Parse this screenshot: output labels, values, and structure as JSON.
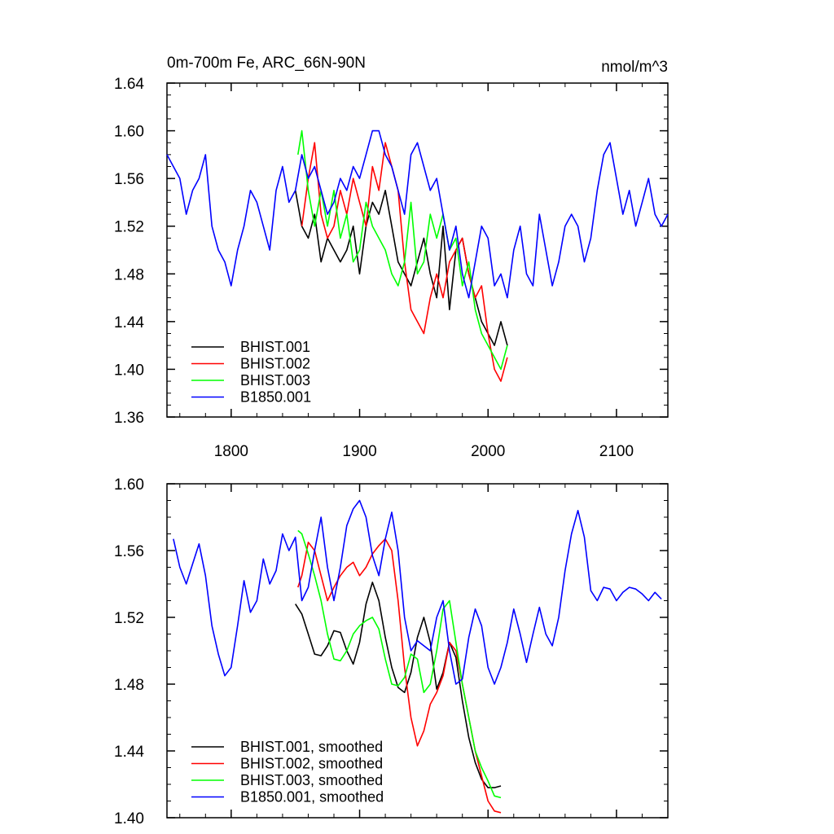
{
  "chart_data": [
    {
      "type": "line",
      "title": "0m-700m Fe, ARC_66N-90N",
      "units": "nmol/m^3",
      "xlim": [
        1750,
        2140
      ],
      "ylim": [
        1.36,
        1.64
      ],
      "xticks": [
        1800,
        1900,
        2000,
        2100
      ],
      "xtick_labels": [
        "1800",
        "1900",
        "2000",
        "2100"
      ],
      "yticks": [
        1.36,
        1.4,
        1.44,
        1.48,
        1.52,
        1.56,
        1.6,
        1.64
      ],
      "ytick_labels": [
        "1.36",
        "1.40",
        "1.44",
        "1.48",
        "1.52",
        "1.56",
        "1.60",
        "1.64"
      ],
      "legend_position": "bottom-left",
      "series": [
        {
          "name": "BHIST.001",
          "color": "#000000",
          "x": [
            1850,
            1855,
            1860,
            1865,
            1870,
            1875,
            1880,
            1885,
            1890,
            1895,
            1900,
            1905,
            1910,
            1915,
            1920,
            1925,
            1930,
            1935,
            1940,
            1945,
            1950,
            1955,
            1960,
            1965,
            1970,
            1975,
            1980,
            1985,
            1990,
            1995,
            2000,
            2005,
            2010,
            2015
          ],
          "y": [
            1.55,
            1.52,
            1.51,
            1.53,
            1.49,
            1.51,
            1.5,
            1.49,
            1.5,
            1.52,
            1.48,
            1.52,
            1.54,
            1.53,
            1.55,
            1.52,
            1.49,
            1.48,
            1.47,
            1.49,
            1.51,
            1.48,
            1.46,
            1.52,
            1.45,
            1.5,
            1.51,
            1.48,
            1.46,
            1.44,
            1.43,
            1.42,
            1.44,
            1.42
          ]
        },
        {
          "name": "BHIST.002",
          "color": "#ff0000",
          "x": [
            1855,
            1860,
            1865,
            1870,
            1875,
            1880,
            1885,
            1890,
            1895,
            1900,
            1905,
            1910,
            1915,
            1920,
            1925,
            1930,
            1935,
            1940,
            1945,
            1950,
            1955,
            1960,
            1965,
            1970,
            1975,
            1980,
            1985,
            1990,
            1995,
            2000,
            2005,
            2010,
            2015
          ],
          "y": [
            1.52,
            1.56,
            1.59,
            1.53,
            1.51,
            1.52,
            1.55,
            1.53,
            1.56,
            1.54,
            1.52,
            1.57,
            1.55,
            1.59,
            1.57,
            1.55,
            1.49,
            1.45,
            1.44,
            1.43,
            1.46,
            1.48,
            1.46,
            1.49,
            1.5,
            1.51,
            1.48,
            1.46,
            1.47,
            1.43,
            1.4,
            1.39,
            1.41
          ]
        },
        {
          "name": "BHIST.003",
          "color": "#00ff00",
          "x": [
            1852,
            1855,
            1860,
            1865,
            1870,
            1875,
            1880,
            1885,
            1890,
            1895,
            1900,
            1905,
            1910,
            1915,
            1920,
            1925,
            1930,
            1935,
            1940,
            1945,
            1950,
            1955,
            1960,
            1965,
            1970,
            1975,
            1980,
            1985,
            1990,
            1995,
            2000,
            2005,
            2010,
            2015
          ],
          "y": [
            1.58,
            1.6,
            1.55,
            1.52,
            1.55,
            1.52,
            1.55,
            1.51,
            1.53,
            1.49,
            1.5,
            1.54,
            1.52,
            1.51,
            1.5,
            1.48,
            1.47,
            1.49,
            1.54,
            1.48,
            1.49,
            1.53,
            1.51,
            1.53,
            1.5,
            1.51,
            1.47,
            1.49,
            1.45,
            1.43,
            1.42,
            1.41,
            1.4,
            1.42
          ]
        },
        {
          "name": "B1850.001",
          "color": "#0000ff",
          "x": [
            1750,
            1755,
            1760,
            1765,
            1770,
            1775,
            1780,
            1785,
            1790,
            1795,
            1800,
            1805,
            1810,
            1815,
            1820,
            1825,
            1830,
            1835,
            1840,
            1845,
            1850,
            1855,
            1860,
            1865,
            1870,
            1875,
            1880,
            1885,
            1890,
            1895,
            1900,
            1905,
            1910,
            1915,
            1920,
            1925,
            1930,
            1935,
            1940,
            1945,
            1950,
            1955,
            1960,
            1965,
            1970,
            1975,
            1980,
            1985,
            1990,
            1995,
            2000,
            2005,
            2010,
            2015,
            2020,
            2025,
            2030,
            2035,
            2040,
            2045,
            2050,
            2055,
            2060,
            2065,
            2070,
            2075,
            2080,
            2085,
            2090,
            2095,
            2100,
            2105,
            2110,
            2115,
            2120,
            2125,
            2130,
            2135,
            2140
          ],
          "y": [
            1.58,
            1.57,
            1.56,
            1.53,
            1.55,
            1.56,
            1.58,
            1.52,
            1.5,
            1.49,
            1.47,
            1.5,
            1.52,
            1.55,
            1.54,
            1.52,
            1.5,
            1.55,
            1.57,
            1.54,
            1.55,
            1.58,
            1.56,
            1.57,
            1.55,
            1.53,
            1.54,
            1.56,
            1.55,
            1.57,
            1.56,
            1.58,
            1.6,
            1.6,
            1.58,
            1.57,
            1.55,
            1.53,
            1.58,
            1.59,
            1.57,
            1.55,
            1.56,
            1.53,
            1.5,
            1.52,
            1.48,
            1.46,
            1.49,
            1.52,
            1.51,
            1.47,
            1.48,
            1.46,
            1.5,
            1.52,
            1.48,
            1.47,
            1.53,
            1.5,
            1.47,
            1.49,
            1.52,
            1.53,
            1.52,
            1.49,
            1.51,
            1.55,
            1.58,
            1.59,
            1.56,
            1.53,
            1.55,
            1.52,
            1.54,
            1.56,
            1.53,
            1.52,
            1.53
          ]
        }
      ]
    },
    {
      "type": "line",
      "title": "",
      "xlim": [
        1750,
        2140
      ],
      "ylim": [
        1.4,
        1.6
      ],
      "xticks": [
        1800,
        1900,
        2000,
        2100
      ],
      "yticks": [
        1.4,
        1.44,
        1.48,
        1.52,
        1.56,
        1.6
      ],
      "ytick_labels": [
        "1.40",
        "1.44",
        "1.48",
        "1.52",
        "1.56",
        "1.60"
      ],
      "legend_position": "bottom-left",
      "series": [
        {
          "name": "BHIST.001, smoothed",
          "color": "#000000",
          "x": [
            1850,
            1855,
            1860,
            1865,
            1870,
            1875,
            1880,
            1885,
            1890,
            1895,
            1900,
            1905,
            1910,
            1915,
            1920,
            1925,
            1930,
            1935,
            1940,
            1945,
            1950,
            1955,
            1960,
            1965,
            1970,
            1975,
            1980,
            1985,
            1990,
            1995,
            2000,
            2005,
            2010
          ],
          "y": [
            1.528,
            1.522,
            1.51,
            1.498,
            1.497,
            1.503,
            1.512,
            1.511,
            1.5,
            1.492,
            1.505,
            1.528,
            1.541,
            1.53,
            1.508,
            1.49,
            1.478,
            1.475,
            1.487,
            1.508,
            1.52,
            1.505,
            1.477,
            1.487,
            1.505,
            1.496,
            1.47,
            1.448,
            1.433,
            1.423,
            1.418,
            1.418,
            1.419
          ]
        },
        {
          "name": "BHIST.002, smoothed",
          "color": "#ff0000",
          "x": [
            1852,
            1855,
            1860,
            1865,
            1870,
            1875,
            1880,
            1885,
            1890,
            1895,
            1900,
            1905,
            1910,
            1915,
            1920,
            1925,
            1930,
            1935,
            1940,
            1945,
            1950,
            1955,
            1960,
            1965,
            1970,
            1975,
            1980,
            1985,
            1990,
            1995,
            2000,
            2005,
            2010
          ],
          "y": [
            1.538,
            1.545,
            1.565,
            1.56,
            1.545,
            1.53,
            1.538,
            1.545,
            1.55,
            1.553,
            1.545,
            1.55,
            1.558,
            1.563,
            1.567,
            1.56,
            1.53,
            1.49,
            1.46,
            1.443,
            1.452,
            1.468,
            1.475,
            1.485,
            1.505,
            1.5,
            1.48,
            1.46,
            1.44,
            1.425,
            1.41,
            1.404,
            1.403
          ]
        },
        {
          "name": "BHIST.003, smoothed",
          "color": "#00ff00",
          "x": [
            1852,
            1855,
            1860,
            1865,
            1870,
            1875,
            1880,
            1885,
            1890,
            1895,
            1900,
            1905,
            1910,
            1915,
            1920,
            1925,
            1930,
            1935,
            1940,
            1945,
            1950,
            1955,
            1960,
            1965,
            1970,
            1975,
            1980,
            1985,
            1990,
            1995,
            2000,
            2005,
            2010
          ],
          "y": [
            1.572,
            1.57,
            1.558,
            1.545,
            1.53,
            1.51,
            1.495,
            1.494,
            1.5,
            1.51,
            1.515,
            1.518,
            1.52,
            1.513,
            1.495,
            1.48,
            1.479,
            1.484,
            1.498,
            1.495,
            1.475,
            1.48,
            1.5,
            1.525,
            1.53,
            1.505,
            1.48,
            1.46,
            1.44,
            1.43,
            1.422,
            1.413,
            1.412
          ]
        },
        {
          "name": "B1850.001, smoothed",
          "color": "#0000ff",
          "x": [
            1755,
            1760,
            1765,
            1770,
            1775,
            1780,
            1785,
            1790,
            1795,
            1800,
            1805,
            1810,
            1815,
            1820,
            1825,
            1830,
            1835,
            1840,
            1845,
            1850,
            1855,
            1860,
            1865,
            1870,
            1875,
            1880,
            1885,
            1890,
            1895,
            1900,
            1905,
            1910,
            1915,
            1920,
            1925,
            1930,
            1935,
            1940,
            1945,
            1950,
            1955,
            1960,
            1965,
            1970,
            1975,
            1980,
            1985,
            1990,
            1995,
            2000,
            2005,
            2010,
            2015,
            2020,
            2025,
            2030,
            2035,
            2040,
            2045,
            2050,
            2055,
            2060,
            2065,
            2070,
            2075,
            2080,
            2085,
            2090,
            2095,
            2100,
            2105,
            2110,
            2115,
            2120,
            2125,
            2130,
            2135
          ],
          "y": [
            1.567,
            1.55,
            1.54,
            1.552,
            1.564,
            1.545,
            1.515,
            1.498,
            1.485,
            1.49,
            1.515,
            1.542,
            1.523,
            1.53,
            1.555,
            1.54,
            1.548,
            1.57,
            1.56,
            1.568,
            1.53,
            1.538,
            1.56,
            1.58,
            1.55,
            1.53,
            1.55,
            1.575,
            1.585,
            1.59,
            1.58,
            1.557,
            1.545,
            1.567,
            1.583,
            1.56,
            1.52,
            1.5,
            1.506,
            1.503,
            1.5,
            1.52,
            1.53,
            1.5,
            1.48,
            1.483,
            1.508,
            1.525,
            1.515,
            1.49,
            1.48,
            1.49,
            1.505,
            1.525,
            1.51,
            1.493,
            1.51,
            1.526,
            1.51,
            1.503,
            1.52,
            1.548,
            1.57,
            1.584,
            1.568,
            1.536,
            1.53,
            1.538,
            1.537,
            1.53,
            1.535,
            1.538,
            1.537,
            1.534,
            1.53,
            1.535,
            1.531
          ]
        }
      ]
    }
  ]
}
